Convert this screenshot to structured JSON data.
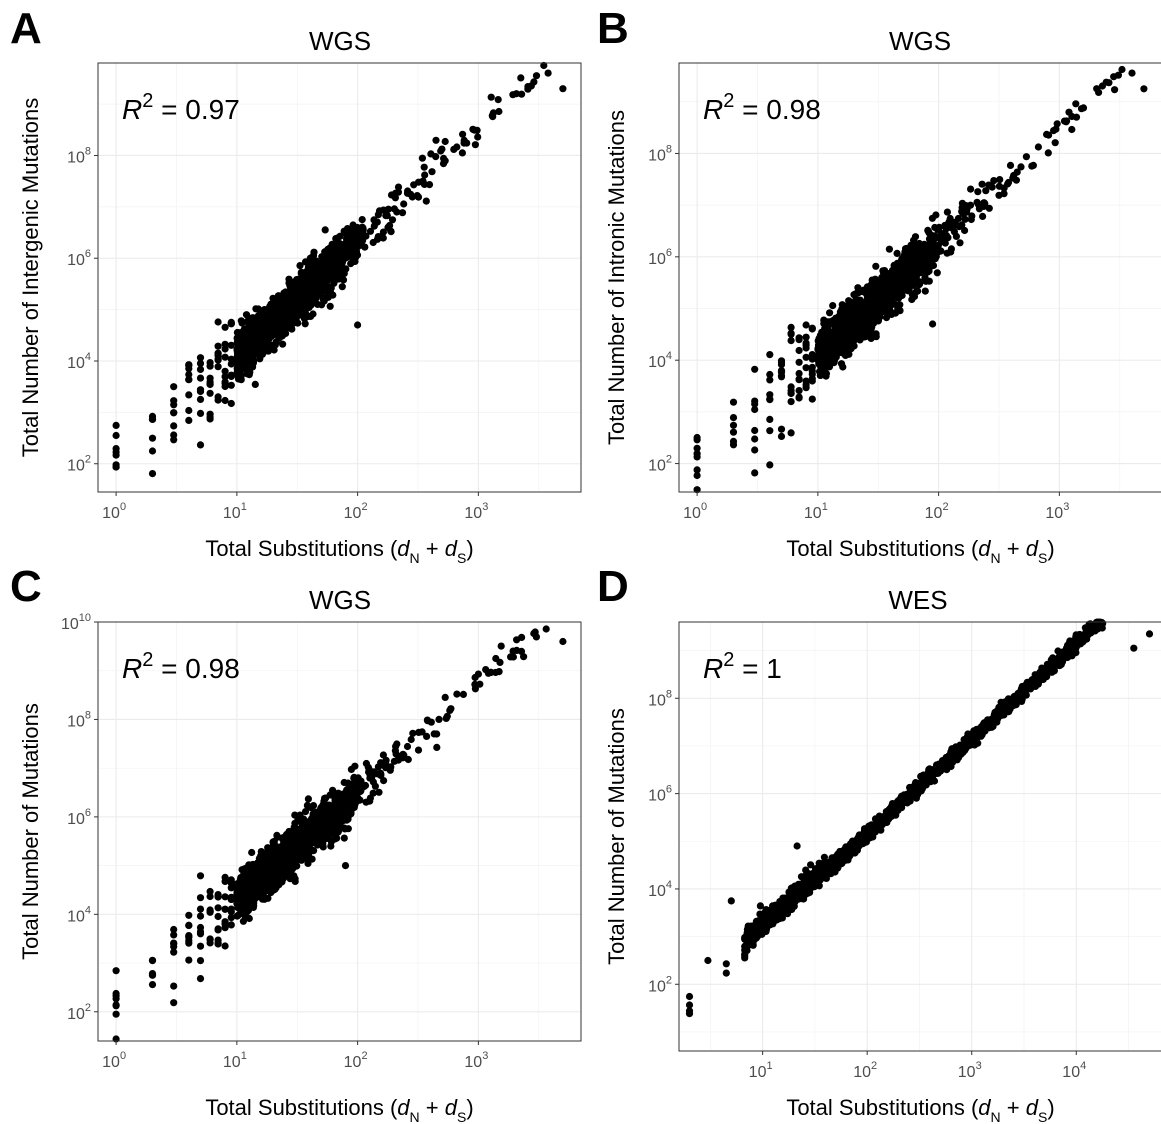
{
  "figure": {
    "x_axis_title_text": "Total Substitutions (",
    "x_axis_title_dn": "d",
    "x_axis_title_n_sub": "N",
    "x_axis_title_plus": " + ",
    "x_axis_title_ds": "d",
    "x_axis_title_s_sub": "S",
    "x_axis_title_close": ")",
    "tick_base": "10",
    "r2_label": "R",
    "r2_sup": "2"
  },
  "chart_data": [
    {
      "panel": "A",
      "type": "scatter",
      "title": "WGS",
      "xlabel": "Total Substitutions (dN + dS)",
      "ylabel": "Total Number of Intergenic Mutations",
      "log_x": true,
      "log_y": true,
      "xlim_log10": [
        -0.15,
        3.85
      ],
      "ylim_log10": [
        1.45,
        9.8
      ],
      "x_ticks_log10": [
        0,
        1,
        2,
        3
      ],
      "y_ticks_log10": [
        2,
        4,
        6,
        8
      ],
      "r_squared": "0.97",
      "point_color": "#000000",
      "fit": {
        "slope": 2.22,
        "intercept": 1.87,
        "x_max": 3.7,
        "y_max": 9.3
      },
      "outliers": [
        {
          "x": 2.0,
          "y": 4.7
        }
      ],
      "grid": true,
      "legend": "none"
    },
    {
      "panel": "B",
      "type": "scatter",
      "title": "WGS",
      "xlabel": "Total Substitutions (dN + dS)",
      "ylabel": "Total Number of Intronic Mutations",
      "log_x": true,
      "log_y": true,
      "xlim_log10": [
        -0.15,
        3.85
      ],
      "ylim_log10": [
        1.45,
        9.75
      ],
      "x_ticks_log10": [
        0,
        1,
        2,
        3
      ],
      "y_ticks_log10": [
        2,
        4,
        6,
        8
      ],
      "r_squared": "0.98",
      "point_color": "#000000",
      "fit": {
        "slope": 2.2,
        "intercept": 1.86,
        "x_max": 3.7,
        "y_max": 9.25
      },
      "outliers": [
        {
          "x": 1.95,
          "y": 4.7
        },
        {
          "x": 1.45,
          "y": 5.55
        }
      ],
      "grid": true,
      "legend": "none"
    },
    {
      "panel": "C",
      "type": "scatter",
      "title": "WGS",
      "xlabel": "Total Substitutions (dN + dS)",
      "ylabel": "Total Number of Mutations",
      "log_x": true,
      "log_y": true,
      "xlim_log10": [
        -0.15,
        3.85
      ],
      "ylim_log10": [
        1.4,
        10.0
      ],
      "x_ticks_log10": [
        0,
        1,
        2,
        3
      ],
      "y_ticks_log10": [
        2,
        4,
        6,
        8,
        10
      ],
      "r_squared": "0.98",
      "point_color": "#000000",
      "fit": {
        "slope": 2.22,
        "intercept": 2.05,
        "x_max": 3.7,
        "y_max": 9.6
      },
      "outliers": [
        {
          "x": 1.9,
          "y": 5.0
        }
      ],
      "grid": true,
      "legend": "none"
    },
    {
      "panel": "D",
      "type": "scatter",
      "title": "WES",
      "xlabel": "Total Substitutions (dN + dS)",
      "ylabel": "Total Number of Mutations",
      "log_x": true,
      "log_y": true,
      "xlim_log10": [
        0.2,
        4.82
      ],
      "ylim_log10": [
        0.6,
        9.6
      ],
      "x_ticks_log10": [
        1,
        2,
        3,
        4
      ],
      "y_ticks_log10": [
        2,
        4,
        6,
        8
      ],
      "r_squared": "1",
      "point_color": "#000000",
      "fit": {
        "slope": 2.0,
        "intercept": 1.15,
        "x_max": 4.3,
        "y_max": 9.4
      },
      "outliers": [
        {
          "x": 0.7,
          "y": 3.75
        },
        {
          "x": 1.33,
          "y": 4.9
        },
        {
          "x": 2.32,
          "y": 5.9
        },
        {
          "x": 4.55,
          "y": 9.05
        },
        {
          "x": 4.7,
          "y": 9.35
        }
      ],
      "grid": true,
      "legend": "none"
    }
  ]
}
